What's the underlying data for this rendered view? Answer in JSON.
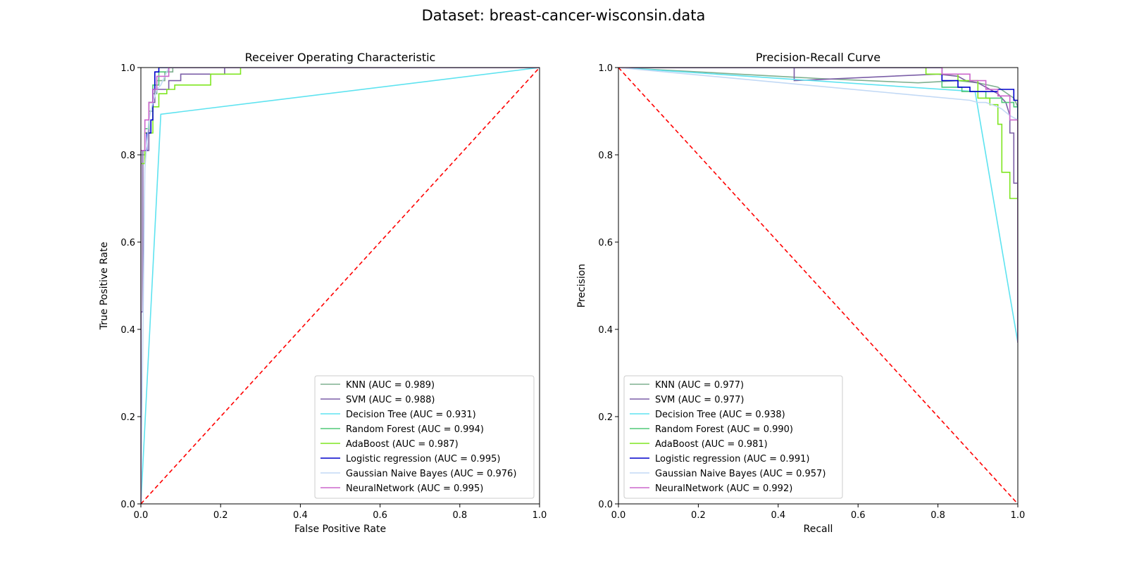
{
  "suptitle": "Dataset: breast-cancer-wisconsin.data",
  "chart_data": [
    {
      "type": "line",
      "title": "Receiver Operating Characteristic",
      "xlabel": "False Positive Rate",
      "ylabel": "True Positive Rate",
      "xlim": [
        0,
        1
      ],
      "ylim": [
        0,
        1
      ],
      "xticks": [
        "0.0",
        "0.2",
        "0.4",
        "0.6",
        "0.8",
        "1.0"
      ],
      "yticks": [
        "0.0",
        "0.2",
        "0.4",
        "0.6",
        "0.8",
        "1.0"
      ],
      "legend_position": "lower-right",
      "reference_line": {
        "x": [
          0,
          1
        ],
        "y": [
          0,
          1
        ],
        "color": "#ff0000",
        "style": "dashed"
      },
      "series": [
        {
          "name": "KNN (AUC = 0.989)",
          "color": "#7fb08f",
          "x": [
            0,
            0,
            0.01,
            0.01,
            0.02,
            0.02,
            0.03,
            0.03,
            0.04,
            0.04,
            0.06,
            0.06,
            0.08,
            0.08,
            1
          ],
          "y": [
            0,
            0.8,
            0.8,
            0.85,
            0.85,
            0.9,
            0.9,
            0.94,
            0.94,
            0.97,
            0.97,
            0.99,
            0.99,
            1,
            1
          ]
        },
        {
          "name": "SVM (AUC = 0.988)",
          "color": "#7b5ea7",
          "x": [
            0,
            0,
            0.005,
            0.005,
            0.02,
            0.02,
            0.035,
            0.035,
            0.07,
            0.07,
            0.1,
            0.1,
            0.21,
            0.21,
            1
          ],
          "y": [
            0,
            0.44,
            0.44,
            0.81,
            0.81,
            0.92,
            0.92,
            0.95,
            0.95,
            0.97,
            0.97,
            0.985,
            0.985,
            1,
            1
          ]
        },
        {
          "name": "Decision Tree (AUC = 0.931)",
          "color": "#5ee3f0",
          "x": [
            0,
            0.05,
            1
          ],
          "y": [
            0,
            0.893,
            1
          ]
        },
        {
          "name": "Random Forest (AUC = 0.994)",
          "color": "#50c878",
          "x": [
            0,
            0,
            0.01,
            0.01,
            0.02,
            0.02,
            0.03,
            0.03,
            0.045,
            0.045,
            0.07,
            0.07,
            1
          ],
          "y": [
            0,
            0.81,
            0.81,
            0.86,
            0.86,
            0.92,
            0.92,
            0.96,
            0.96,
            0.99,
            0.99,
            1,
            1
          ]
        },
        {
          "name": "AdaBoost (AUC = 0.987)",
          "color": "#7fe620",
          "x": [
            0,
            0,
            0.01,
            0.01,
            0.03,
            0.03,
            0.045,
            0.045,
            0.065,
            0.065,
            0.085,
            0.085,
            0.175,
            0.175,
            0.25,
            0.25,
            1
          ],
          "y": [
            0,
            0.78,
            0.78,
            0.85,
            0.85,
            0.91,
            0.91,
            0.94,
            0.94,
            0.95,
            0.95,
            0.96,
            0.96,
            0.985,
            0.985,
            1,
            1
          ]
        },
        {
          "name": "Logistic regression (AUC = 0.995)",
          "color": "#0000cc",
          "x": [
            0,
            0,
            0.015,
            0.015,
            0.025,
            0.025,
            0.03,
            0.03,
            0.035,
            0.035,
            0.045,
            0.045,
            1
          ],
          "y": [
            0,
            0.81,
            0.81,
            0.85,
            0.85,
            0.88,
            0.88,
            0.95,
            0.95,
            0.99,
            0.99,
            1,
            1
          ]
        },
        {
          "name": "Gaussian Naive Bayes (AUC = 0.976)",
          "color": "#c2d9f5",
          "x": [
            0,
            0.01,
            0.02,
            0.03,
            0.04,
            0.05,
            0.06,
            0.07,
            1
          ],
          "y": [
            0,
            0.77,
            0.88,
            0.92,
            0.95,
            0.96,
            0.98,
            1,
            1
          ]
        },
        {
          "name": "NeuralNetwork (AUC = 0.995)",
          "color": "#cc66cc",
          "x": [
            0,
            0,
            0.01,
            0.01,
            0.02,
            0.02,
            0.03,
            0.03,
            0.04,
            0.04,
            0.07,
            0.07,
            1
          ],
          "y": [
            0,
            0.81,
            0.81,
            0.88,
            0.88,
            0.92,
            0.92,
            0.95,
            0.95,
            0.98,
            0.98,
            1,
            1
          ]
        }
      ]
    },
    {
      "type": "line",
      "title": "Precision-Recall Curve",
      "xlabel": "Recall",
      "ylabel": "Precision",
      "xlim": [
        0,
        1
      ],
      "ylim": [
        0,
        1
      ],
      "xticks": [
        "0.0",
        "0.2",
        "0.4",
        "0.6",
        "0.8",
        "1.0"
      ],
      "yticks": [
        "0.0",
        "0.2",
        "0.4",
        "0.6",
        "0.8",
        "1.0"
      ],
      "legend_position": "lower-left",
      "reference_line": {
        "x": [
          0,
          1
        ],
        "y": [
          1,
          0
        ],
        "color": "#ff0000",
        "style": "dashed"
      },
      "series": [
        {
          "name": "KNN (AUC = 0.977)",
          "color": "#7fb08f",
          "x": [
            0,
            0.5,
            0.75,
            0.85,
            0.9,
            0.95,
            0.99,
            1,
            1
          ],
          "y": [
            1,
            0.975,
            0.965,
            0.97,
            0.965,
            0.955,
            0.93,
            0.91,
            0.37
          ]
        },
        {
          "name": "SVM (AUC = 0.977)",
          "color": "#7b5ea7",
          "x": [
            0,
            0.44,
            0.44,
            0.8,
            0.85,
            0.87,
            0.9,
            0.93,
            0.95,
            0.97,
            0.98,
            0.98,
            0.99,
            0.99,
            1,
            1
          ],
          "y": [
            1,
            1,
            0.97,
            0.985,
            0.98,
            0.97,
            0.965,
            0.95,
            0.94,
            0.92,
            0.89,
            0.85,
            0.85,
            0.735,
            0.735,
            0.37
          ]
        },
        {
          "name": "Decision Tree (AUC = 0.938)",
          "color": "#5ee3f0",
          "x": [
            0,
            0.893,
            1
          ],
          "y": [
            1,
            0.945,
            0.37
          ]
        },
        {
          "name": "Random Forest (AUC = 0.990)",
          "color": "#50c878",
          "x": [
            0,
            0.81,
            0.81,
            0.86,
            0.86,
            0.92,
            0.92,
            0.96,
            0.96,
            0.99,
            0.99,
            1,
            1
          ],
          "y": [
            1,
            1,
            0.955,
            0.955,
            0.945,
            0.945,
            0.93,
            0.93,
            0.92,
            0.92,
            0.91,
            0.91,
            0.37
          ]
        },
        {
          "name": "AdaBoost (AUC = 0.981)",
          "color": "#7fe620",
          "x": [
            0,
            0.77,
            0.77,
            0.85,
            0.85,
            0.9,
            0.9,
            0.93,
            0.93,
            0.95,
            0.95,
            0.96,
            0.96,
            0.98,
            0.98,
            1,
            1
          ],
          "y": [
            1,
            1,
            0.985,
            0.985,
            0.97,
            0.97,
            0.93,
            0.93,
            0.915,
            0.915,
            0.87,
            0.87,
            0.76,
            0.76,
            0.7,
            0.7,
            0.37
          ]
        },
        {
          "name": "Logistic regression (AUC = 0.991)",
          "color": "#0000cc",
          "x": [
            0,
            0.81,
            0.81,
            0.85,
            0.85,
            0.88,
            0.88,
            0.95,
            0.95,
            0.99,
            0.99,
            1,
            1
          ],
          "y": [
            1,
            1,
            0.97,
            0.97,
            0.955,
            0.955,
            0.945,
            0.945,
            0.95,
            0.95,
            0.925,
            0.925,
            0.37
          ]
        },
        {
          "name": "Gaussian Naive Bayes (AUC = 0.957)",
          "color": "#c2d9f5",
          "x": [
            0,
            0.88,
            0.9,
            0.92,
            0.95,
            0.96,
            0.98,
            1,
            1
          ],
          "y": [
            1,
            0.925,
            0.92,
            0.92,
            0.91,
            0.905,
            0.89,
            0.88,
            0.37
          ]
        },
        {
          "name": "NeuralNetwork (AUC = 0.992)",
          "color": "#cc66cc",
          "x": [
            0,
            0.81,
            0.81,
            0.88,
            0.88,
            0.92,
            0.92,
            0.95,
            0.95,
            0.98,
            0.98,
            1,
            1
          ],
          "y": [
            1,
            1,
            0.985,
            0.985,
            0.97,
            0.97,
            0.95,
            0.95,
            0.935,
            0.935,
            0.88,
            0.88,
            0.37
          ]
        }
      ]
    }
  ]
}
